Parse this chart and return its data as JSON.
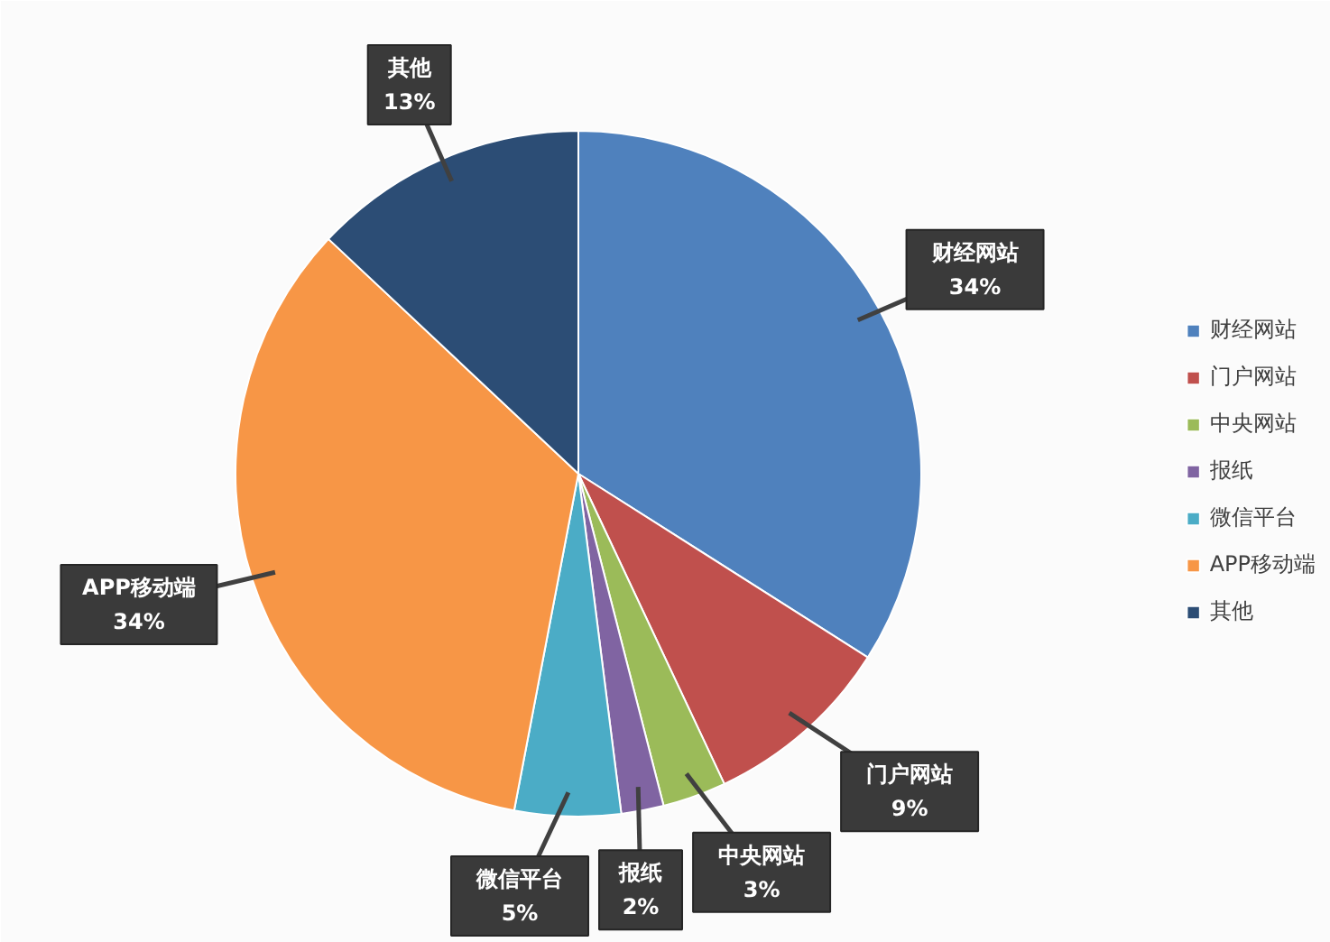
{
  "chart_data": {
    "type": "pie",
    "categories": [
      "财经网站",
      "门户网站",
      "中央网站",
      "报纸",
      "微信平台",
      "APP移动端",
      "其他"
    ],
    "values": [
      34,
      9,
      3,
      2,
      5,
      34,
      13
    ],
    "value_labels": [
      "34%",
      "9%",
      "3%",
      "2%",
      "5%",
      "34%",
      "13%"
    ],
    "colors": [
      "#4f81bd",
      "#c0504d",
      "#9bbb59",
      "#8064a2",
      "#4bacc6",
      "#f79646",
      "#2c4d75"
    ],
    "legend": "right"
  }
}
